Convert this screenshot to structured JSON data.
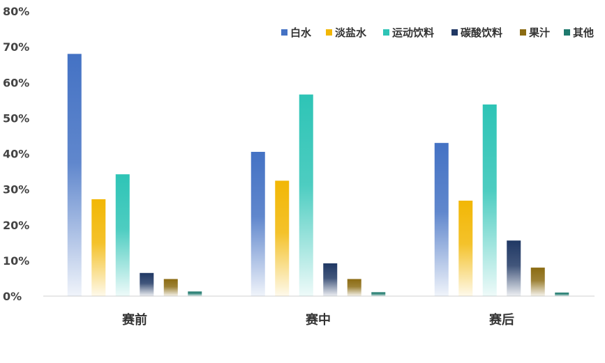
{
  "chart_data": {
    "type": "bar",
    "categories": [
      "赛前",
      "赛中",
      "赛后"
    ],
    "series": [
      {
        "name": "白水",
        "values": [
          68,
          40.5,
          43
        ],
        "color": "#4472C4"
      },
      {
        "name": "淡盐水",
        "values": [
          27.2,
          32.4,
          26.8
        ],
        "color": "#F2B705"
      },
      {
        "name": "运动饮料",
        "values": [
          34.2,
          56.6,
          53.8
        ],
        "color": "#2EC4B6"
      },
      {
        "name": "碳酸饮料",
        "values": [
          6.5,
          9.2,
          15.6
        ],
        "color": "#203864"
      },
      {
        "name": "果汁",
        "values": [
          4.8,
          4.8,
          8.0
        ],
        "color": "#8B6B12"
      },
      {
        "name": "其他",
        "values": [
          1.3,
          1.1,
          1.0
        ],
        "color": "#1F7A6E"
      }
    ],
    "yticks": [
      "0%",
      "10%",
      "20%",
      "30%",
      "40%",
      "50%",
      "60%",
      "70%",
      "80%"
    ],
    "ylim": [
      0,
      80
    ],
    "legend_position": "top-right",
    "grid": false
  }
}
